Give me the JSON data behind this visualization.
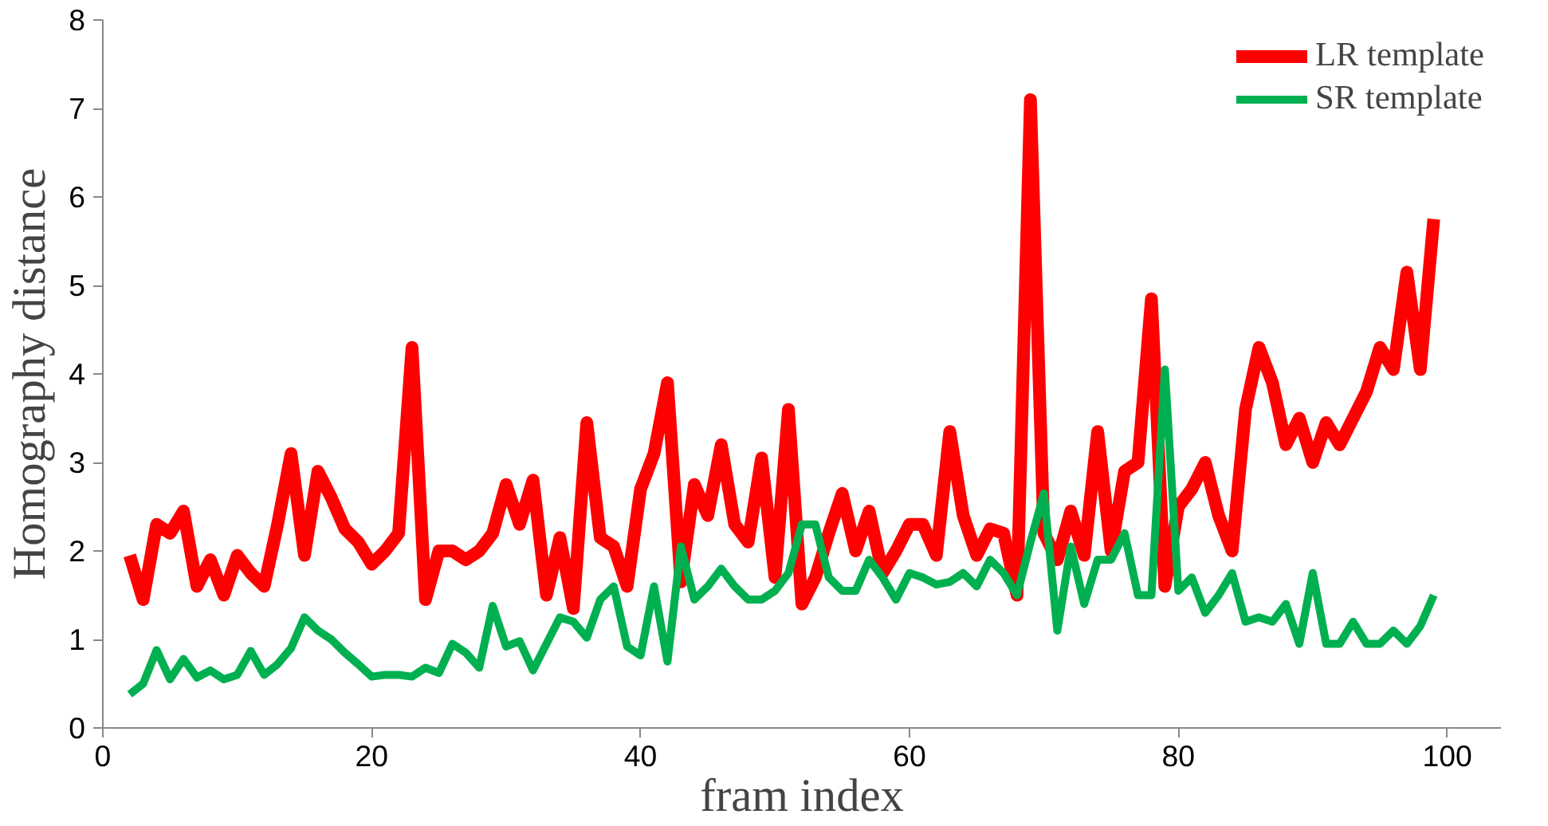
{
  "chart_data": {
    "type": "line",
    "xlabel": "fram index",
    "ylabel": "Homography distance",
    "x": [
      2,
      3,
      4,
      5,
      6,
      7,
      8,
      9,
      10,
      11,
      12,
      13,
      14,
      15,
      16,
      17,
      18,
      19,
      20,
      21,
      22,
      23,
      24,
      25,
      26,
      27,
      28,
      29,
      30,
      31,
      32,
      33,
      34,
      35,
      36,
      37,
      38,
      39,
      40,
      41,
      42,
      43,
      44,
      45,
      46,
      47,
      48,
      49,
      50,
      51,
      52,
      53,
      54,
      55,
      56,
      57,
      58,
      59,
      60,
      61,
      62,
      63,
      64,
      65,
      66,
      67,
      68,
      69,
      70,
      71,
      72,
      73,
      74,
      75,
      76,
      77,
      78,
      79,
      80,
      81,
      82,
      83,
      84,
      85,
      86,
      87,
      88,
      89,
      90,
      91,
      92,
      93,
      94,
      95,
      96,
      97,
      98,
      99
    ],
    "series": [
      {
        "name": "LR template",
        "color": "#ff0000",
        "values": [
          1.95,
          1.45,
          2.3,
          2.2,
          2.45,
          1.6,
          1.9,
          1.5,
          1.95,
          1.75,
          1.6,
          2.3,
          3.1,
          1.95,
          2.9,
          2.6,
          2.25,
          2.1,
          1.85,
          2.0,
          2.2,
          4.3,
          1.45,
          2.0,
          2.0,
          1.9,
          2.0,
          2.2,
          2.75,
          2.3,
          2.8,
          1.5,
          2.15,
          1.35,
          3.45,
          2.15,
          2.05,
          1.6,
          2.7,
          3.1,
          3.9,
          1.65,
          2.75,
          2.4,
          3.2,
          2.3,
          2.1,
          3.05,
          1.7,
          3.6,
          1.4,
          1.7,
          2.2,
          2.65,
          2.0,
          2.45,
          1.75,
          2.0,
          2.3,
          2.3,
          1.95,
          3.35,
          2.4,
          1.95,
          2.25,
          2.2,
          1.5,
          7.1,
          2.2,
          1.9,
          2.45,
          1.95,
          3.35,
          2.0,
          2.9,
          3.0,
          4.85,
          1.6,
          2.5,
          2.7,
          3.0,
          2.4,
          2.0,
          3.6,
          4.3,
          3.9,
          3.2,
          3.5,
          3.0,
          3.45,
          3.2,
          3.5,
          3.8,
          4.3,
          4.05,
          5.15,
          4.05,
          5.75
        ]
      },
      {
        "name": "SR template",
        "color": "#00b050",
        "values": [
          0.38,
          0.5,
          0.88,
          0.55,
          0.78,
          0.57,
          0.65,
          0.55,
          0.6,
          0.87,
          0.6,
          0.72,
          0.9,
          1.25,
          1.1,
          1.0,
          0.85,
          0.72,
          0.58,
          0.6,
          0.6,
          0.58,
          0.68,
          0.62,
          0.95,
          0.85,
          0.68,
          1.38,
          0.92,
          0.98,
          0.65,
          0.95,
          1.25,
          1.2,
          1.02,
          1.45,
          1.6,
          0.92,
          0.82,
          1.6,
          0.75,
          2.05,
          1.45,
          1.6,
          1.8,
          1.6,
          1.45,
          1.45,
          1.55,
          1.75,
          2.3,
          2.3,
          1.7,
          1.55,
          1.55,
          1.9,
          1.7,
          1.45,
          1.75,
          1.7,
          1.62,
          1.65,
          1.75,
          1.6,
          1.9,
          1.75,
          1.5,
          2.1,
          2.65,
          1.1,
          2.05,
          1.4,
          1.9,
          1.9,
          2.2,
          1.5,
          1.5,
          4.05,
          1.55,
          1.7,
          1.3,
          1.5,
          1.75,
          1.2,
          1.25,
          1.2,
          1.4,
          0.95,
          1.75,
          0.95,
          0.95,
          1.2,
          0.95,
          0.95,
          1.1,
          0.95,
          1.15,
          1.5
        ]
      }
    ],
    "xlim": [
      0,
      104
    ],
    "ylim": [
      0,
      8
    ],
    "xticks": [
      0,
      20,
      40,
      60,
      80,
      100
    ],
    "yticks": [
      0,
      1,
      2,
      3,
      4,
      5,
      6,
      7,
      8
    ],
    "grid": false,
    "legend": "top right",
    "marker": "none",
    "line_style": "solid"
  }
}
